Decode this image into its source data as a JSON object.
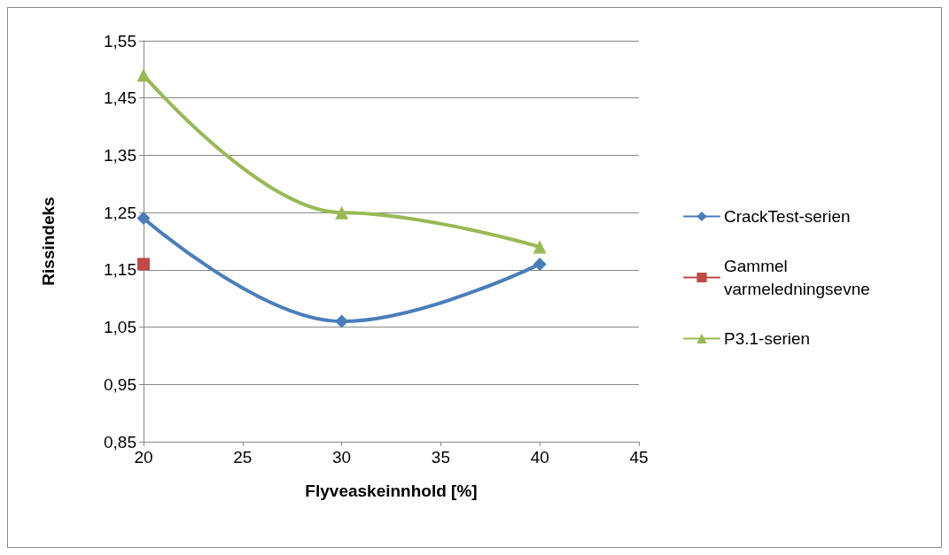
{
  "chart_data": {
    "type": "line",
    "xlabel": "Flyveaskeinnhold [%]",
    "ylabel": "Rissindeks",
    "x": [
      20,
      30,
      40
    ],
    "series": [
      {
        "name": "CrackTest-serien",
        "color": "#4a7ebb",
        "marker": "diamond",
        "values": [
          1.24,
          1.06,
          1.16
        ]
      },
      {
        "name": "Gammel varmeledningsevne",
        "color": "#be4b48",
        "marker": "square",
        "x": [
          20
        ],
        "values": [
          1.16
        ]
      },
      {
        "name": "P3.1-serien",
        "color": "#98b954",
        "marker": "triangle",
        "values": [
          1.49,
          1.25,
          1.19
        ]
      }
    ],
    "xlim": [
      20,
      45
    ],
    "xticks": [
      20,
      25,
      30,
      35,
      40,
      45
    ],
    "ylim": [
      0.85,
      1.55
    ],
    "yticks": [
      {
        "value": 0.85,
        "label": "0,85"
      },
      {
        "value": 0.95,
        "label": "0,95"
      },
      {
        "value": 1.05,
        "label": "1,05"
      },
      {
        "value": 1.15,
        "label": "1,15"
      },
      {
        "value": 1.25,
        "label": "1,25"
      },
      {
        "value": 1.35,
        "label": "1,35"
      },
      {
        "value": 1.45,
        "label": "1,45"
      },
      {
        "value": 1.55,
        "label": "1,55"
      }
    ],
    "grid": "y",
    "legend": "right"
  }
}
